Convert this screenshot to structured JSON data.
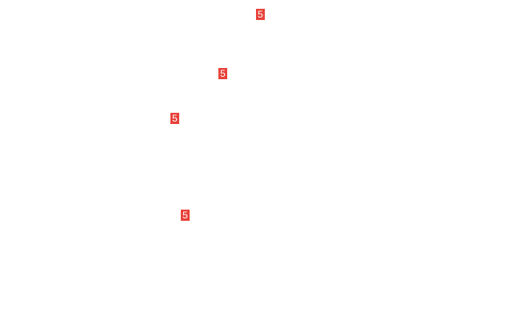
{
  "badge_color": "#e8413a",
  "badges": [
    {
      "label": "5"
    },
    {
      "label": "5"
    },
    {
      "label": "5"
    },
    {
      "label": "5"
    }
  ]
}
